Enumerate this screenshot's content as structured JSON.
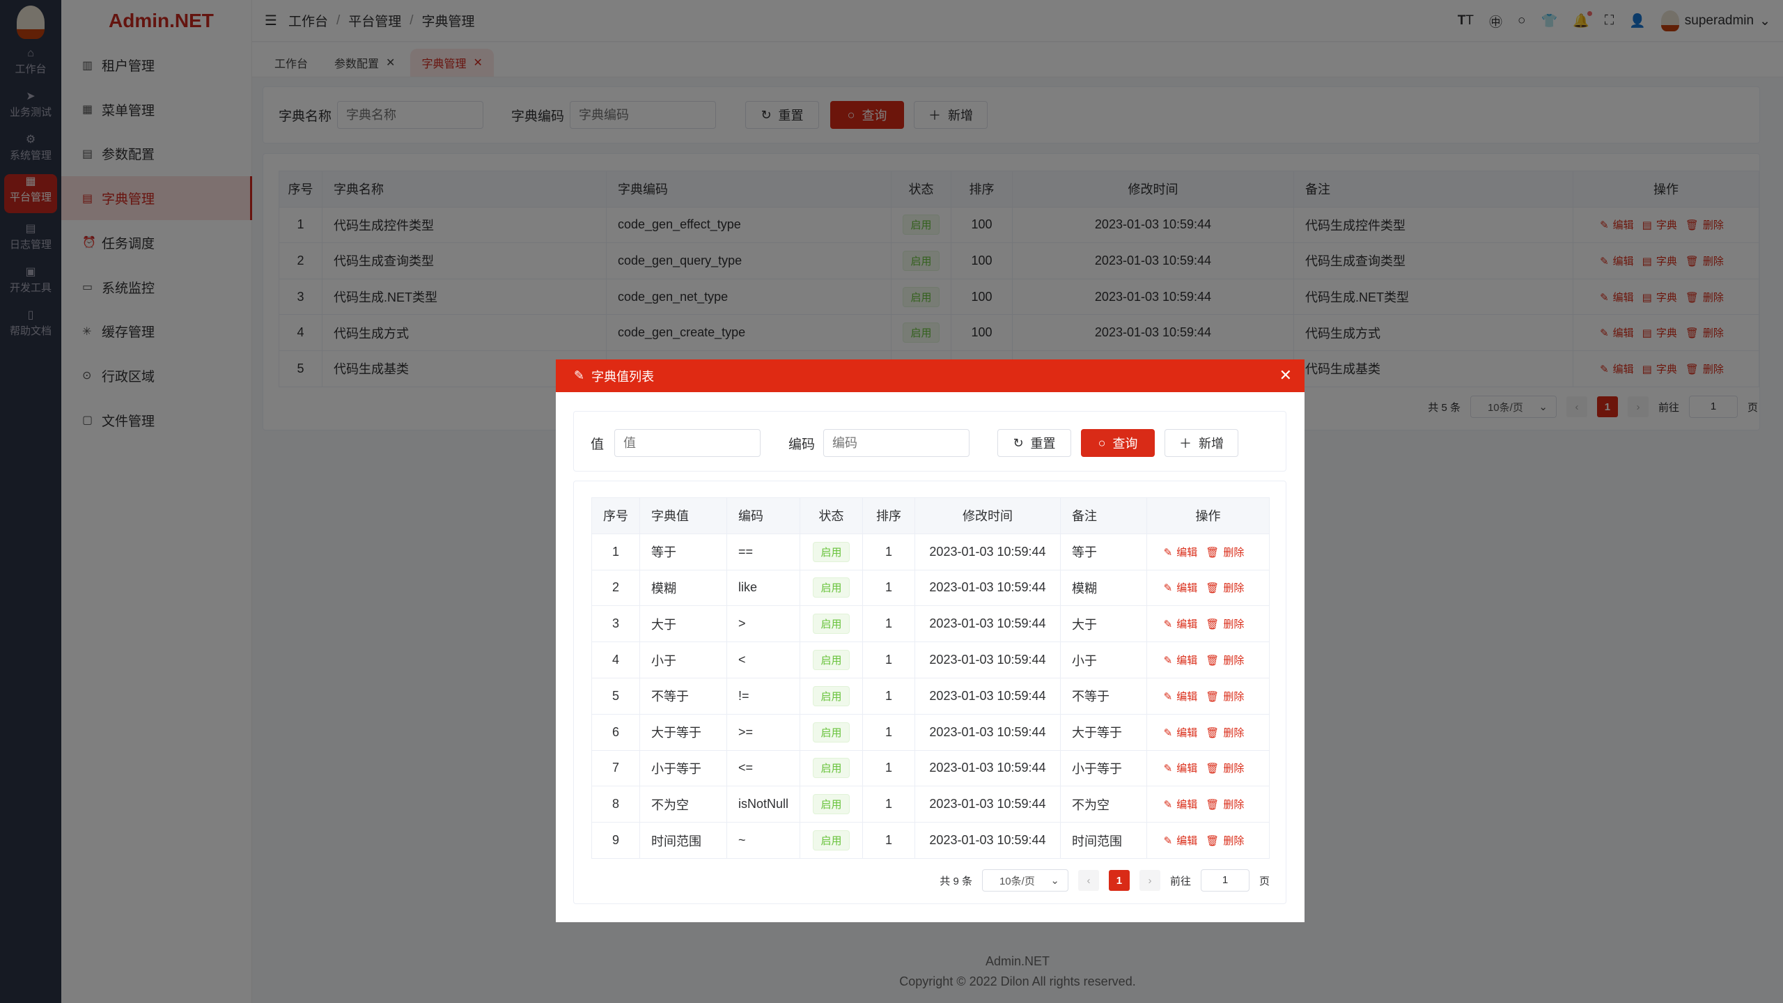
{
  "rail": {
    "items": [
      {
        "label": "工作台",
        "icon": "home-icon"
      },
      {
        "label": "业务测试",
        "icon": "send-icon"
      },
      {
        "label": "系统管理",
        "icon": "gear-icon"
      },
      {
        "label": "平台管理",
        "icon": "grid-icon",
        "active": true
      },
      {
        "label": "日志管理",
        "icon": "document-icon"
      },
      {
        "label": "开发工具",
        "icon": "chip-icon"
      },
      {
        "label": "帮助文档",
        "icon": "notebook-icon"
      }
    ]
  },
  "brand": "Admin.NET",
  "menu": {
    "items": [
      {
        "label": "租户管理",
        "icon": "building-icon"
      },
      {
        "label": "菜单管理",
        "icon": "grid-icon"
      },
      {
        "label": "参数配置",
        "icon": "document-icon"
      },
      {
        "label": "字典管理",
        "icon": "book-icon",
        "active": true
      },
      {
        "label": "任务调度",
        "icon": "alarm-icon"
      },
      {
        "label": "系统监控",
        "icon": "monitor-icon"
      },
      {
        "label": "缓存管理",
        "icon": "loading-icon"
      },
      {
        "label": "行政区域",
        "icon": "location-icon"
      },
      {
        "label": "文件管理",
        "icon": "file-icon"
      }
    ]
  },
  "breadcrumb": [
    "工作台",
    "平台管理",
    "字典管理"
  ],
  "header": {
    "username": "superadmin"
  },
  "tabs": [
    {
      "label": "工作台",
      "closable": false
    },
    {
      "label": "参数配置",
      "closable": true
    },
    {
      "label": "字典管理",
      "closable": true,
      "active": true
    }
  ],
  "search": {
    "name_label": "字典名称",
    "name_placeholder": "字典名称",
    "code_label": "字典编码",
    "code_placeholder": "字典编码",
    "reset": "重置",
    "query": "查询",
    "add": "新增"
  },
  "table": {
    "headers": [
      "序号",
      "字典名称",
      "字典编码",
      "状态",
      "排序",
      "修改时间",
      "备注",
      "操作"
    ],
    "rows": [
      [
        "1",
        "代码生成控件类型",
        "code_gen_effect_type",
        "启用",
        "100",
        "2023-01-03 10:59:44",
        "代码生成控件类型"
      ],
      [
        "2",
        "代码生成查询类型",
        "code_gen_query_type",
        "启用",
        "100",
        "2023-01-03 10:59:44",
        "代码生成查询类型"
      ],
      [
        "3",
        "代码生成.NET类型",
        "code_gen_net_type",
        "启用",
        "100",
        "2023-01-03 10:59:44",
        "代码生成.NET类型"
      ],
      [
        "4",
        "代码生成方式",
        "code_gen_create_type",
        "启用",
        "100",
        "2023-01-03 10:59:44",
        "代码生成方式"
      ],
      [
        "5",
        "代码生成基类",
        "",
        "",
        "",
        "",
        "代码生成基类"
      ]
    ],
    "ops": [
      "编辑",
      "字典",
      "删除"
    ]
  },
  "pagination": {
    "total": "共 5 条",
    "page_size": "10条/页",
    "current": "1",
    "goto_label": "前往",
    "goto_value": "1",
    "page_suffix": "页"
  },
  "dialog": {
    "title": "字典值列表",
    "search": {
      "value_label": "值",
      "value_placeholder": "值",
      "code_label": "编码",
      "code_placeholder": "编码",
      "reset": "重置",
      "query": "查询",
      "add": "新增"
    },
    "headers": [
      "序号",
      "字典值",
      "编码",
      "状态",
      "排序",
      "修改时间",
      "备注",
      "操作"
    ],
    "rows": [
      [
        "1",
        "等于",
        "==",
        "启用",
        "1",
        "2023-01-03 10:59:44",
        "等于"
      ],
      [
        "2",
        "模糊",
        "like",
        "启用",
        "1",
        "2023-01-03 10:59:44",
        "模糊"
      ],
      [
        "3",
        "大于",
        ">",
        "启用",
        "1",
        "2023-01-03 10:59:44",
        "大于"
      ],
      [
        "4",
        "小于",
        "<",
        "启用",
        "1",
        "2023-01-03 10:59:44",
        "小于"
      ],
      [
        "5",
        "不等于",
        "!=",
        "启用",
        "1",
        "2023-01-03 10:59:44",
        "不等于"
      ],
      [
        "6",
        "大于等于",
        ">=",
        "启用",
        "1",
        "2023-01-03 10:59:44",
        "大于等于"
      ],
      [
        "7",
        "小于等于",
        "<=",
        "启用",
        "1",
        "2023-01-03 10:59:44",
        "小于等于"
      ],
      [
        "8",
        "不为空",
        "isNotNull",
        "启用",
        "1",
        "2023-01-03 10:59:44",
        "不为空"
      ],
      [
        "9",
        "时间范围",
        "~",
        "启用",
        "1",
        "2023-01-03 10:59:44",
        "时间范围"
      ]
    ],
    "ops": [
      "编辑",
      "删除"
    ],
    "pagination": {
      "total": "共 9 条",
      "page_size": "10条/页",
      "current": "1",
      "goto_label": "前往",
      "goto_value": "1",
      "page_suffix": "页"
    }
  },
  "footer": {
    "line1": "Admin.NET",
    "line2": "Copyright © 2022 Dilon All rights reserved."
  },
  "colors": {
    "primary": "#d92b17",
    "success": "#67c23a"
  }
}
